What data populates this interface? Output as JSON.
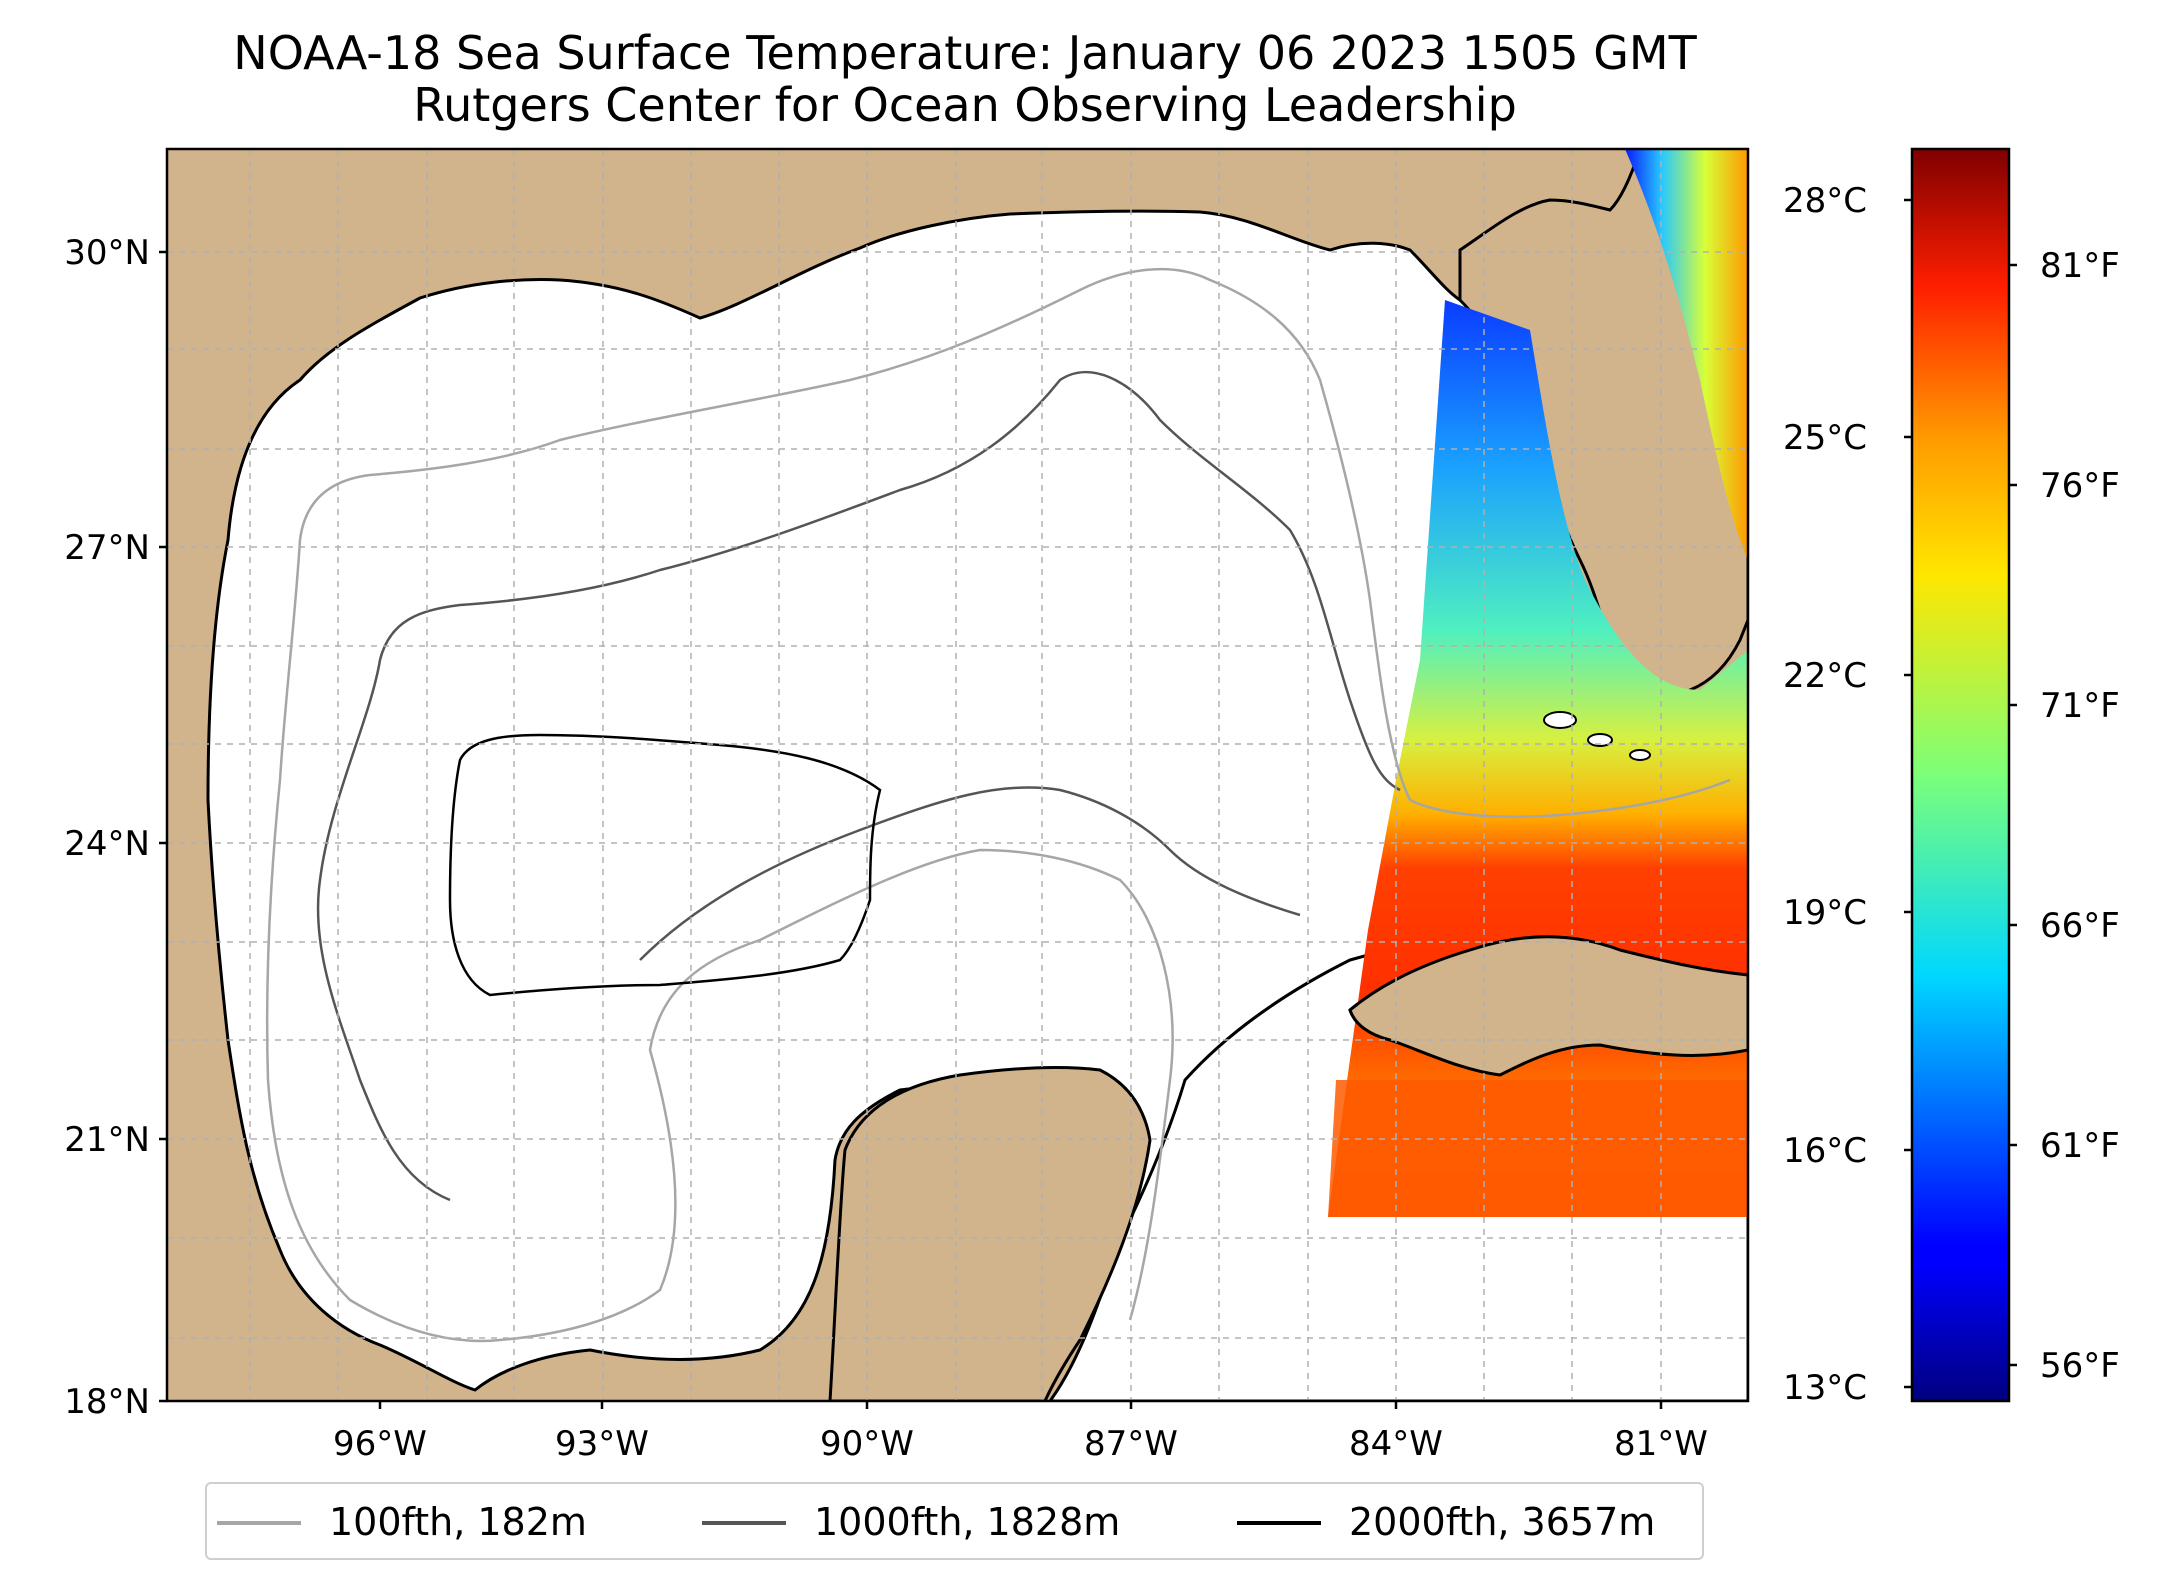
{
  "title": "NOAA-18 Sea Surface Temperature: January 06 2023 1505 GMT",
  "subtitle": "Rutgers Center for Ocean Observing Leadership",
  "map": {
    "lat_ticks": [
      "30°N",
      "27°N",
      "24°N",
      "21°N",
      "18°N"
    ],
    "lon_ticks": [
      "96°W",
      "93°W",
      "90°W",
      "87°W",
      "84°W",
      "81°W"
    ],
    "lat_range": [
      18,
      31
    ],
    "lon_range": [
      -98.3,
      -80.3
    ],
    "land_color": "#d2b48c",
    "lake_color": "#97b6e1",
    "grid": "dashed"
  },
  "colorbar": {
    "colormap": "jet",
    "celsius_ticks": [
      "28°C",
      "25°C",
      "22°C",
      "19°C",
      "16°C",
      "13°C"
    ],
    "fahrenheit_ticks": [
      "81°F",
      "76°F",
      "71°F",
      "66°F",
      "61°F",
      "56°F"
    ],
    "range_c": [
      13,
      28.8
    ]
  },
  "legend": [
    {
      "label": "100fth, 182m",
      "color": "#a6a6a6"
    },
    {
      "label": "1000fth, 1828m",
      "color": "#555555"
    },
    {
      "label": "2000fth, 3657m",
      "color": "#000000"
    }
  ]
}
